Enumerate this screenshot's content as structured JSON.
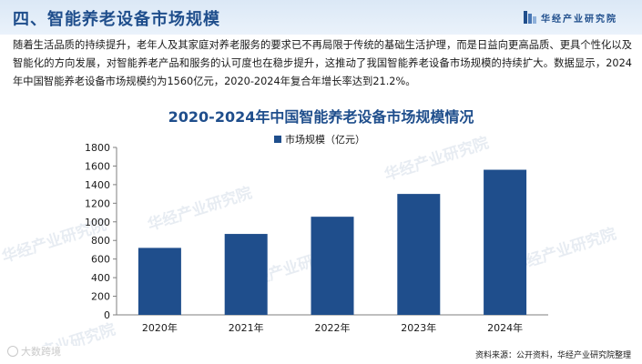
{
  "header": {
    "title": "四、智能养老设备市场规模",
    "logo_text": "华经产业研究院"
  },
  "paragraph": "随着生活品质的持续提升，老年人及其家庭对养老服务的要求已不再局限于传统的基础生活护理，而是日益向更高品质、更具个性化以及智能化的方向发展，对智能养老产品和服务的认可度也在稳步提升，这推动了我国智能养老设备市场规模的持续扩大。数据显示，2024年中国智能养老设备市场规模约为1560亿元，2020-2024年复合年增长率达到21.2%。",
  "watermark_text": "华经产业研究院",
  "corner_watermark": "大数跨境",
  "source": "资料来源：公开资料，华经产业研究院整理",
  "colors": {
    "accent": "#1f4e8c",
    "bar": "#1f4e8c",
    "header_bg": "#dbe8f6"
  },
  "chart_data": {
    "type": "bar",
    "title": "2020-2024年中国智能养老设备市场规模情况",
    "categories": [
      "2020年",
      "2021年",
      "2022年",
      "2023年",
      "2024年"
    ],
    "series": [
      {
        "name": "市场规模（亿元）",
        "values": [
          720,
          870,
          1055,
          1300,
          1560
        ]
      }
    ],
    "yticks": [
      0,
      200,
      400,
      600,
      800,
      1000,
      1200,
      1400,
      1600,
      1800
    ],
    "ylim": [
      0,
      1800
    ],
    "grid": false,
    "legend_position": "top-center"
  }
}
